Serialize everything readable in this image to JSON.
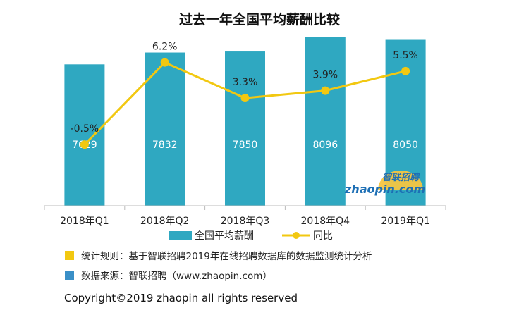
{
  "chart_data": {
    "type": "bar",
    "title": "过去一年全国平均薪酬比较",
    "categories": [
      "2018年Q1",
      "2018年Q2",
      "2018年Q3",
      "2018年Q4",
      "2019年Q1"
    ],
    "series": [
      {
        "name": "全国平均薪酬",
        "kind": "bar",
        "values": [
          7629,
          7832,
          7850,
          8096,
          8050
        ],
        "color": "#2fa8c1"
      },
      {
        "name": "同比",
        "kind": "line",
        "values": [
          -0.5,
          6.2,
          3.3,
          3.9,
          5.5
        ],
        "labels": [
          "-0.5%",
          "6.2%",
          "3.3%",
          "3.9%",
          "5.5%"
        ],
        "color": "#f2c811"
      }
    ],
    "bar_ylim": [
      5200,
      8250
    ],
    "line_ylim": [
      -5.5,
      9.0
    ],
    "xlabel": "",
    "ylabel": "",
    "legend_position": "bottom"
  },
  "watermark": {
    "brand_cn": "智联招聘",
    "brand_en": "zhaopin.com"
  },
  "notes": [
    {
      "text": "统计规则：基于智联招聘2019年在线招聘数据库的数据监测统计分析",
      "color": "#f2c811"
    },
    {
      "text": "数据来源：智联招聘（www.zhaopin.com）",
      "color": "#3a8fc7"
    }
  ],
  "footer": {
    "copyright": "Copyright©2019 zhaopin all rights reserved"
  }
}
